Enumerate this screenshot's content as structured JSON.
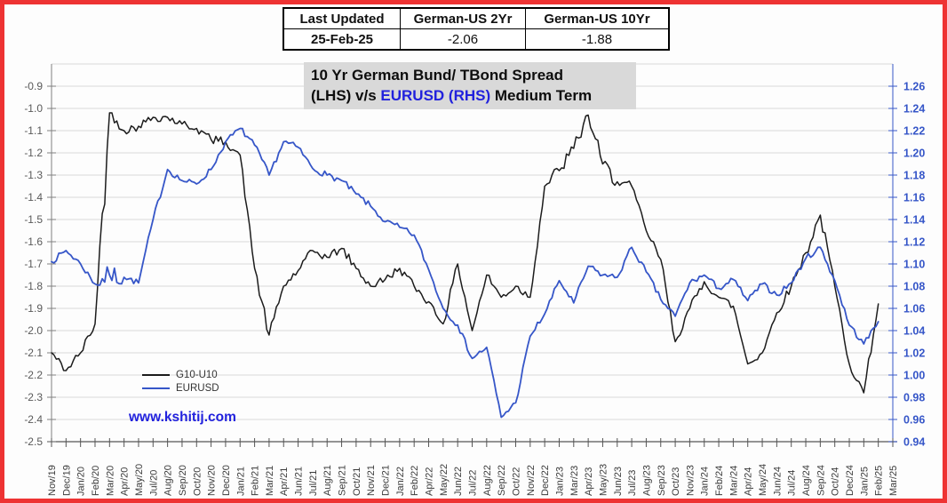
{
  "summary_table": {
    "headers": [
      "Last Updated",
      "German-US 2Yr",
      "German-US 10Yr"
    ],
    "values": [
      "25-Feb-25",
      "-2.06",
      "-1.88"
    ]
  },
  "title": {
    "line1": "10 Yr German Bund/ TBond Spread",
    "line2_pre": "(LHS) v/s ",
    "line2_blue": "EURUSD (RHS)",
    "line2_post": " Medium Term"
  },
  "branding": {
    "watermark": "www.kshitij.com"
  },
  "colors": {
    "border_red": "#ee3333",
    "g10_line": "#1c1c1c",
    "eur_line": "#3656c8",
    "accent_blue": "#2121dd",
    "grid": "#d9d9d9",
    "title_bg": "#d9d9d9",
    "left_label": "#595959",
    "right_label": "#3656c8",
    "x_label": "#3a3a3a",
    "axis_line": "#808080",
    "x_axis_line": "#555555"
  },
  "chart_data": {
    "type": "line",
    "title": "10 Yr German Bund/ TBond Spread (LHS) v/s EURUSD (RHS) Medium Term",
    "grid": true,
    "legend_position": "inside-bottom-left",
    "categories": [
      "Nov/19",
      "Dec/19",
      "Jan/20",
      "Feb/20",
      "Mar/20",
      "Apr/20",
      "May/20",
      "Jul/20",
      "Aug/20",
      "Sep/20",
      "Oct/20",
      "Nov/20",
      "Dec/20",
      "Jan/21",
      "Feb/21",
      "Mar/21",
      "Apr/21",
      "Jun/21",
      "Jul/21",
      "Aug/21",
      "Sep/21",
      "Oct/21",
      "Nov/21",
      "Dec/21",
      "Jan/22",
      "Feb/22",
      "Apr/22",
      "May/22",
      "Jun/22",
      "Jul/22",
      "Aug/22",
      "Sep/22",
      "Oct/22",
      "Nov/22",
      "Dec/22",
      "Jan/23",
      "Mar/23",
      "Apr/23",
      "May/23",
      "Jun/23",
      "Jul/23",
      "Aug/23",
      "Sep/23",
      "Oct/23",
      "Nov/23",
      "Jan/24",
      "Feb/24",
      "Mar/24",
      "Apr/24",
      "May/24",
      "Jun/24",
      "Jul/24",
      "Aug/24",
      "Sep/24",
      "Oct/24",
      "Dec/24",
      "Jan/25",
      "Feb/25",
      "Mar/25"
    ],
    "left_axis": {
      "tick_labels": [
        "-0.9",
        "-1.0",
        "-1.1",
        "-1.2",
        "-1.3",
        "-1.4",
        "-1.5",
        "-1.6",
        "-1.7",
        "-1.8",
        "-1.9",
        "-2.0",
        "-2.1",
        "-2.2",
        "-2.3",
        "-2.4",
        "-2.5"
      ],
      "min": -2.5,
      "max": -0.8,
      "step": 0.1
    },
    "right_axis": {
      "tick_labels": [
        "1.26",
        "1.24",
        "1.22",
        "1.20",
        "1.18",
        "1.16",
        "1.14",
        "1.12",
        "1.10",
        "1.08",
        "1.06",
        "1.04",
        "1.02",
        "1.00",
        "0.98",
        "0.96",
        "0.94"
      ],
      "min": 0.94,
      "max": 1.28,
      "step": 0.02
    },
    "series": [
      {
        "name": "G10-U10",
        "axis": "left",
        "color": "#1c1c1c",
        "values": [
          -2.1,
          -2.18,
          -2.1,
          -1.97,
          -1.02,
          -1.1,
          -1.08,
          -1.04,
          -1.04,
          -1.07,
          -1.09,
          -1.14,
          -1.15,
          -1.21,
          -1.72,
          -2.02,
          -1.8,
          -1.73,
          -1.64,
          -1.67,
          -1.63,
          -1.72,
          -1.8,
          -1.77,
          -1.72,
          -1.8,
          -1.87,
          -1.97,
          -1.7,
          -2.0,
          -1.75,
          -1.85,
          -1.8,
          -1.85,
          -1.35,
          -1.28,
          -1.18,
          -1.03,
          -1.25,
          -1.33,
          -1.35,
          -1.55,
          -1.68,
          -2.05,
          -1.9,
          -1.78,
          -1.85,
          -1.89,
          -2.15,
          -2.1,
          -1.92,
          -1.8,
          -1.65,
          -1.48,
          -1.8,
          -2.15,
          -2.28,
          -1.88,
          null
        ]
      },
      {
        "name": "EURUSD",
        "axis": "right",
        "color": "#3656c8",
        "values": [
          1.102,
          1.112,
          1.1,
          1.082,
          1.09,
          1.088,
          1.083,
          1.14,
          1.185,
          1.175,
          1.172,
          1.185,
          1.21,
          1.222,
          1.207,
          1.18,
          1.21,
          1.205,
          1.186,
          1.18,
          1.175,
          1.163,
          1.152,
          1.138,
          1.133,
          1.126,
          1.095,
          1.06,
          1.045,
          1.015,
          1.025,
          0.962,
          0.975,
          1.035,
          1.055,
          1.085,
          1.065,
          1.098,
          1.09,
          1.088,
          1.115,
          1.093,
          1.068,
          1.053,
          1.083,
          1.09,
          1.078,
          1.086,
          1.067,
          1.082,
          1.072,
          1.083,
          1.105,
          1.115,
          1.085,
          1.045,
          1.028,
          1.048,
          null
        ]
      }
    ]
  }
}
